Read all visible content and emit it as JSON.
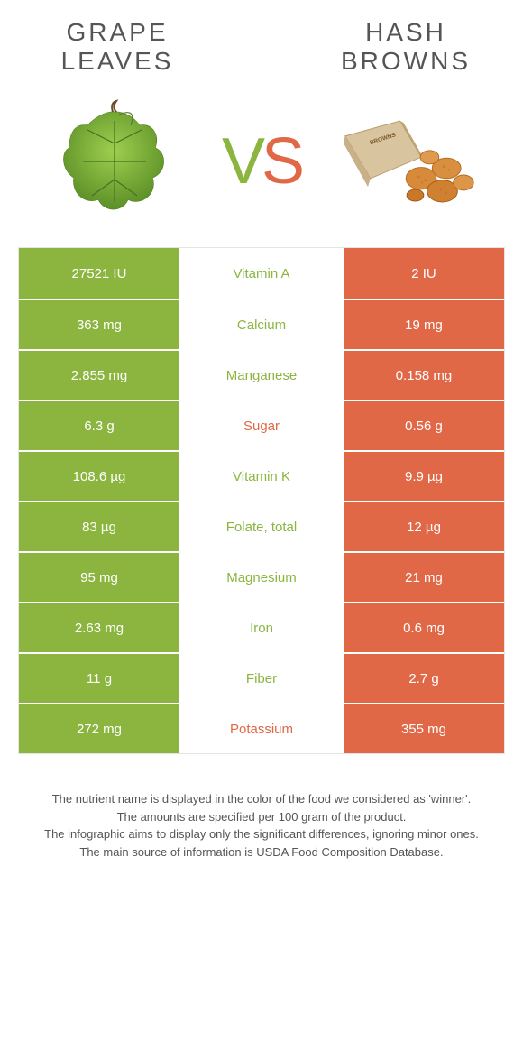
{
  "colors": {
    "green": "#8bb53f",
    "orange": "#e06846",
    "text": "#555555",
    "background": "#ffffff"
  },
  "header": {
    "left_line1": "GRAPE",
    "left_line2": "LEAVES",
    "right_line1": "HASH",
    "right_line2": "BROWNS",
    "vs_v": "V",
    "vs_s": "S"
  },
  "table": {
    "rows": [
      {
        "left": "27521 IU",
        "mid": "Vitamin A",
        "right": "2 IU",
        "winner": "left"
      },
      {
        "left": "363 mg",
        "mid": "Calcium",
        "right": "19 mg",
        "winner": "left"
      },
      {
        "left": "2.855 mg",
        "mid": "Manganese",
        "right": "0.158 mg",
        "winner": "left"
      },
      {
        "left": "6.3 g",
        "mid": "Sugar",
        "right": "0.56 g",
        "winner": "right"
      },
      {
        "left": "108.6 µg",
        "mid": "Vitamin K",
        "right": "9.9 µg",
        "winner": "left"
      },
      {
        "left": "83 µg",
        "mid": "Folate, total",
        "right": "12 µg",
        "winner": "left"
      },
      {
        "left": "95 mg",
        "mid": "Magnesium",
        "right": "21 mg",
        "winner": "left"
      },
      {
        "left": "2.63 mg",
        "mid": "Iron",
        "right": "0.6 mg",
        "winner": "left"
      },
      {
        "left": "11 g",
        "mid": "Fiber",
        "right": "2.7 g",
        "winner": "left"
      },
      {
        "left": "272 mg",
        "mid": "Potassium",
        "right": "355 mg",
        "winner": "right"
      }
    ]
  },
  "footer": {
    "line1": "The nutrient name is displayed in the color of the food we considered as 'winner'.",
    "line2": "The amounts are specified per 100 gram of the product.",
    "line3": "The infographic aims to display only the significant differences, ignoring minor ones.",
    "line4": "The main source of information is USDA Food Composition Database."
  }
}
